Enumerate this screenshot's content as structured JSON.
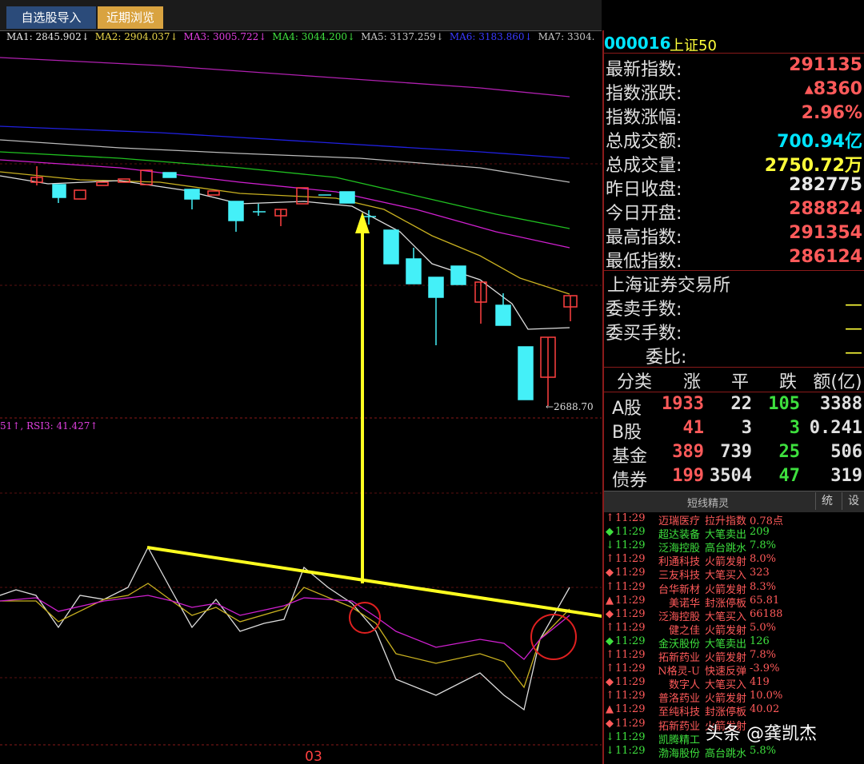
{
  "tabs": [
    "自选股导入",
    "近期浏览"
  ],
  "ma_legend": [
    {
      "text": "MA1: 2845.902↓",
      "color": "#e8e8e8"
    },
    {
      "text": "MA2: 2904.037↓",
      "color": "#e8d44a"
    },
    {
      "text": "MA3: 3005.722↓",
      "color": "#e040e0"
    },
    {
      "text": "MA4: 3044.200↓",
      "color": "#40e040"
    },
    {
      "text": "MA5: 3137.259↓",
      "color": "#c8c8c8"
    },
    {
      "text": "MA6: 3183.860↓",
      "color": "#3a3aff"
    },
    {
      "text": "MA7: 3304.",
      "color": "#c8c8c8"
    }
  ],
  "low_label": "←2688.70",
  "rsi_legend": "51↑, RSI3: 41.427↑",
  "date_label": "03",
  "watermark": "头条 @龚凯杰",
  "quote": {
    "code": "000016",
    "name": "上证50",
    "rows": [
      {
        "label": "最新指数:",
        "value": "291135",
        "color": "#ff5a5a"
      },
      {
        "label": "指数涨跌:",
        "value": "▴8360",
        "color": "#ff5a5a"
      },
      {
        "label": "指数涨幅:",
        "value": "2.96%",
        "color": "#ff5a5a"
      },
      {
        "label": "总成交额:",
        "value": "700.94亿",
        "color": "#00e5ff"
      },
      {
        "label": "总成交量:",
        "value": "2750.72万",
        "color": "#ffff3a"
      },
      {
        "label": "昨日收盘:",
        "value": "282775",
        "color": "#e8e8e8"
      },
      {
        "label": "今日开盘:",
        "value": "288824",
        "color": "#ff5a5a"
      },
      {
        "label": "最高指数:",
        "value": "291354",
        "color": "#ff5a5a"
      },
      {
        "label": "最低指数:",
        "value": "286124",
        "color": "#ff5a5a"
      }
    ],
    "exchange": "上海证券交易所",
    "order_rows": [
      {
        "label": "委卖手数:",
        "value": "—"
      },
      {
        "label": "委买手数:",
        "value": "—"
      },
      {
        "label": "委比:",
        "value": "—"
      }
    ]
  },
  "breadth": {
    "header": [
      "分类",
      "涨",
      "平",
      "跌",
      "额(亿)"
    ],
    "rows": [
      [
        "A股",
        "1933",
        "22",
        "105",
        "3388"
      ],
      [
        "B股",
        "41",
        "3",
        "3",
        "0.241"
      ],
      [
        "基金",
        "389",
        "739",
        "25",
        "506"
      ],
      [
        "债券",
        "199",
        "3504",
        "47",
        "319"
      ]
    ]
  },
  "alerts": {
    "title": "短线精灵",
    "buttons": [
      "统",
      "设"
    ],
    "items": [
      {
        "mark": "↑",
        "time": "11:29",
        "name": "迈瑞医疗",
        "event": "拉升指数",
        "value": "0.78点",
        "color": "#ff5a5a"
      },
      {
        "mark": "◆",
        "time": "11:29",
        "name": "超达装备",
        "event": "大笔卖出",
        "value": "209",
        "color": "#3ee03e"
      },
      {
        "mark": "↓",
        "time": "11:29",
        "name": "泛海控股",
        "event": "高台跳水",
        "value": "7.8%",
        "color": "#3ee03e"
      },
      {
        "mark": "↑",
        "time": "11:29",
        "name": "利通科技",
        "event": "火箭发射",
        "value": "8.0%",
        "color": "#ff5a5a"
      },
      {
        "mark": "◆",
        "time": "11:29",
        "name": "三友科技",
        "event": "大笔买入",
        "value": "323",
        "color": "#ff5a5a"
      },
      {
        "mark": "↑",
        "time": "11:29",
        "name": "台华新材",
        "event": "火箭发射",
        "value": "8.3%",
        "color": "#ff5a5a"
      },
      {
        "mark": "▲",
        "time": "11:29",
        "name": "美诺华",
        "event": "封涨停板",
        "value": "65.81",
        "color": "#ff5a5a"
      },
      {
        "mark": "◆",
        "time": "11:29",
        "name": "泛海控股",
        "event": "大笔买入",
        "value": "66188",
        "color": "#ff5a5a"
      },
      {
        "mark": "↑",
        "time": "11:29",
        "name": "健之佳",
        "event": "火箭发射",
        "value": "5.0%",
        "color": "#ff5a5a"
      },
      {
        "mark": "◆",
        "time": "11:29",
        "name": "金沃股份",
        "event": "大笔卖出",
        "value": "126",
        "color": "#3ee03e"
      },
      {
        "mark": "↑",
        "time": "11:29",
        "name": "拓新药业",
        "event": "火箭发射",
        "value": "7.8%",
        "color": "#ff5a5a"
      },
      {
        "mark": "↑",
        "time": "11:29",
        "name": "N格灵-U",
        "event": "快速反弹",
        "value": "-3.9%",
        "color": "#ff5a5a"
      },
      {
        "mark": "◆",
        "time": "11:29",
        "name": "数字人",
        "event": "大笔买入",
        "value": "419",
        "color": "#ff5a5a"
      },
      {
        "mark": "↑",
        "time": "11:29",
        "name": "普洛药业",
        "event": "火箭发射",
        "value": "10.0%",
        "color": "#ff5a5a"
      },
      {
        "mark": "▲",
        "time": "11:29",
        "name": "至纯科技",
        "event": "封涨停板",
        "value": "40.02",
        "color": "#ff5a5a"
      },
      {
        "mark": "◆",
        "time": "11:29",
        "name": "拓新药业",
        "event": "火箭发射",
        "value": "",
        "color": "#ff5a5a"
      },
      {
        "mark": "↓",
        "time": "11:29",
        "name": "凯腾精工",
        "event": "",
        "value": "",
        "color": "#3ee03e"
      },
      {
        "mark": "↓",
        "time": "11:29",
        "name": "渤海股份",
        "event": "高台跳水",
        "value": "5.8%",
        "color": "#3ee03e"
      }
    ]
  }
}
